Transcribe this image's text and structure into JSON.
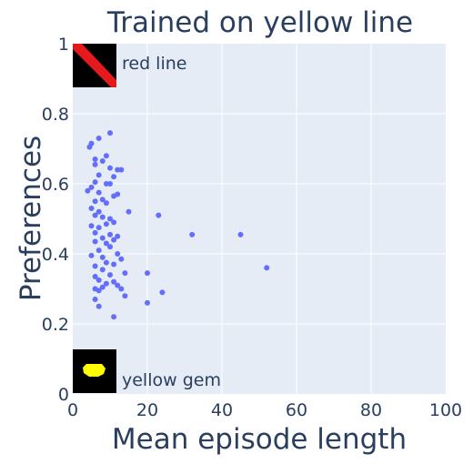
{
  "chart_data": {
    "type": "scatter",
    "title": "Trained on yellow line",
    "xlabel": "Mean episode length",
    "ylabel": "Preferences",
    "xlim": [
      0,
      100
    ],
    "ylim": [
      0,
      1
    ],
    "xticks": [
      "0",
      "20",
      "40",
      "60",
      "80",
      "100"
    ],
    "yticks": [
      "0",
      "0.2",
      "0.4",
      "0.6",
      "0.8",
      "1"
    ],
    "grid": true,
    "marker_color": "#636efa",
    "plot_bg": "#e5ecf6",
    "annotations": {
      "top": "red line",
      "bottom": "yellow gem"
    },
    "points": [
      [
        10,
        0.745
      ],
      [
        5,
        0.715
      ],
      [
        4.5,
        0.705
      ],
      [
        7,
        0.73
      ],
      [
        9,
        0.68
      ],
      [
        6,
        0.67
      ],
      [
        8,
        0.665
      ],
      [
        6,
        0.655
      ],
      [
        10,
        0.645
      ],
      [
        13,
        0.64
      ],
      [
        12,
        0.64
      ],
      [
        7,
        0.625
      ],
      [
        11,
        0.62
      ],
      [
        6,
        0.605
      ],
      [
        5,
        0.59
      ],
      [
        9,
        0.6
      ],
      [
        10,
        0.6
      ],
      [
        4,
        0.58
      ],
      [
        7,
        0.575
      ],
      [
        12,
        0.57
      ],
      [
        11,
        0.565
      ],
      [
        8,
        0.555
      ],
      [
        6,
        0.55
      ],
      [
        9,
        0.545
      ],
      [
        5,
        0.53
      ],
      [
        7,
        0.52
      ],
      [
        15,
        0.52
      ],
      [
        23,
        0.51
      ],
      [
        6,
        0.51
      ],
      [
        8,
        0.505
      ],
      [
        10,
        0.5
      ],
      [
        11,
        0.49
      ],
      [
        5,
        0.48
      ],
      [
        9,
        0.485
      ],
      [
        7,
        0.475
      ],
      [
        6,
        0.46
      ],
      [
        10,
        0.455
      ],
      [
        12,
        0.45
      ],
      [
        32,
        0.455
      ],
      [
        45,
        0.455
      ],
      [
        8,
        0.445
      ],
      [
        11,
        0.44
      ],
      [
        6,
        0.435
      ],
      [
        9,
        0.43
      ],
      [
        10,
        0.42
      ],
      [
        7,
        0.41
      ],
      [
        12,
        0.4
      ],
      [
        5,
        0.395
      ],
      [
        8,
        0.39
      ],
      [
        13,
        0.385
      ],
      [
        9,
        0.375
      ],
      [
        11,
        0.37
      ],
      [
        6,
        0.365
      ],
      [
        8,
        0.355
      ],
      [
        52,
        0.36
      ],
      [
        20,
        0.345
      ],
      [
        14,
        0.345
      ],
      [
        10,
        0.34
      ],
      [
        6,
        0.335
      ],
      [
        7,
        0.325
      ],
      [
        11,
        0.32
      ],
      [
        9,
        0.315
      ],
      [
        12,
        0.31
      ],
      [
        8,
        0.305
      ],
      [
        6,
        0.3
      ],
      [
        13,
        0.3
      ],
      [
        7,
        0.295
      ],
      [
        24,
        0.29
      ],
      [
        14,
        0.28
      ],
      [
        6,
        0.27
      ],
      [
        20,
        0.26
      ],
      [
        7,
        0.25
      ],
      [
        11,
        0.22
      ]
    ]
  }
}
